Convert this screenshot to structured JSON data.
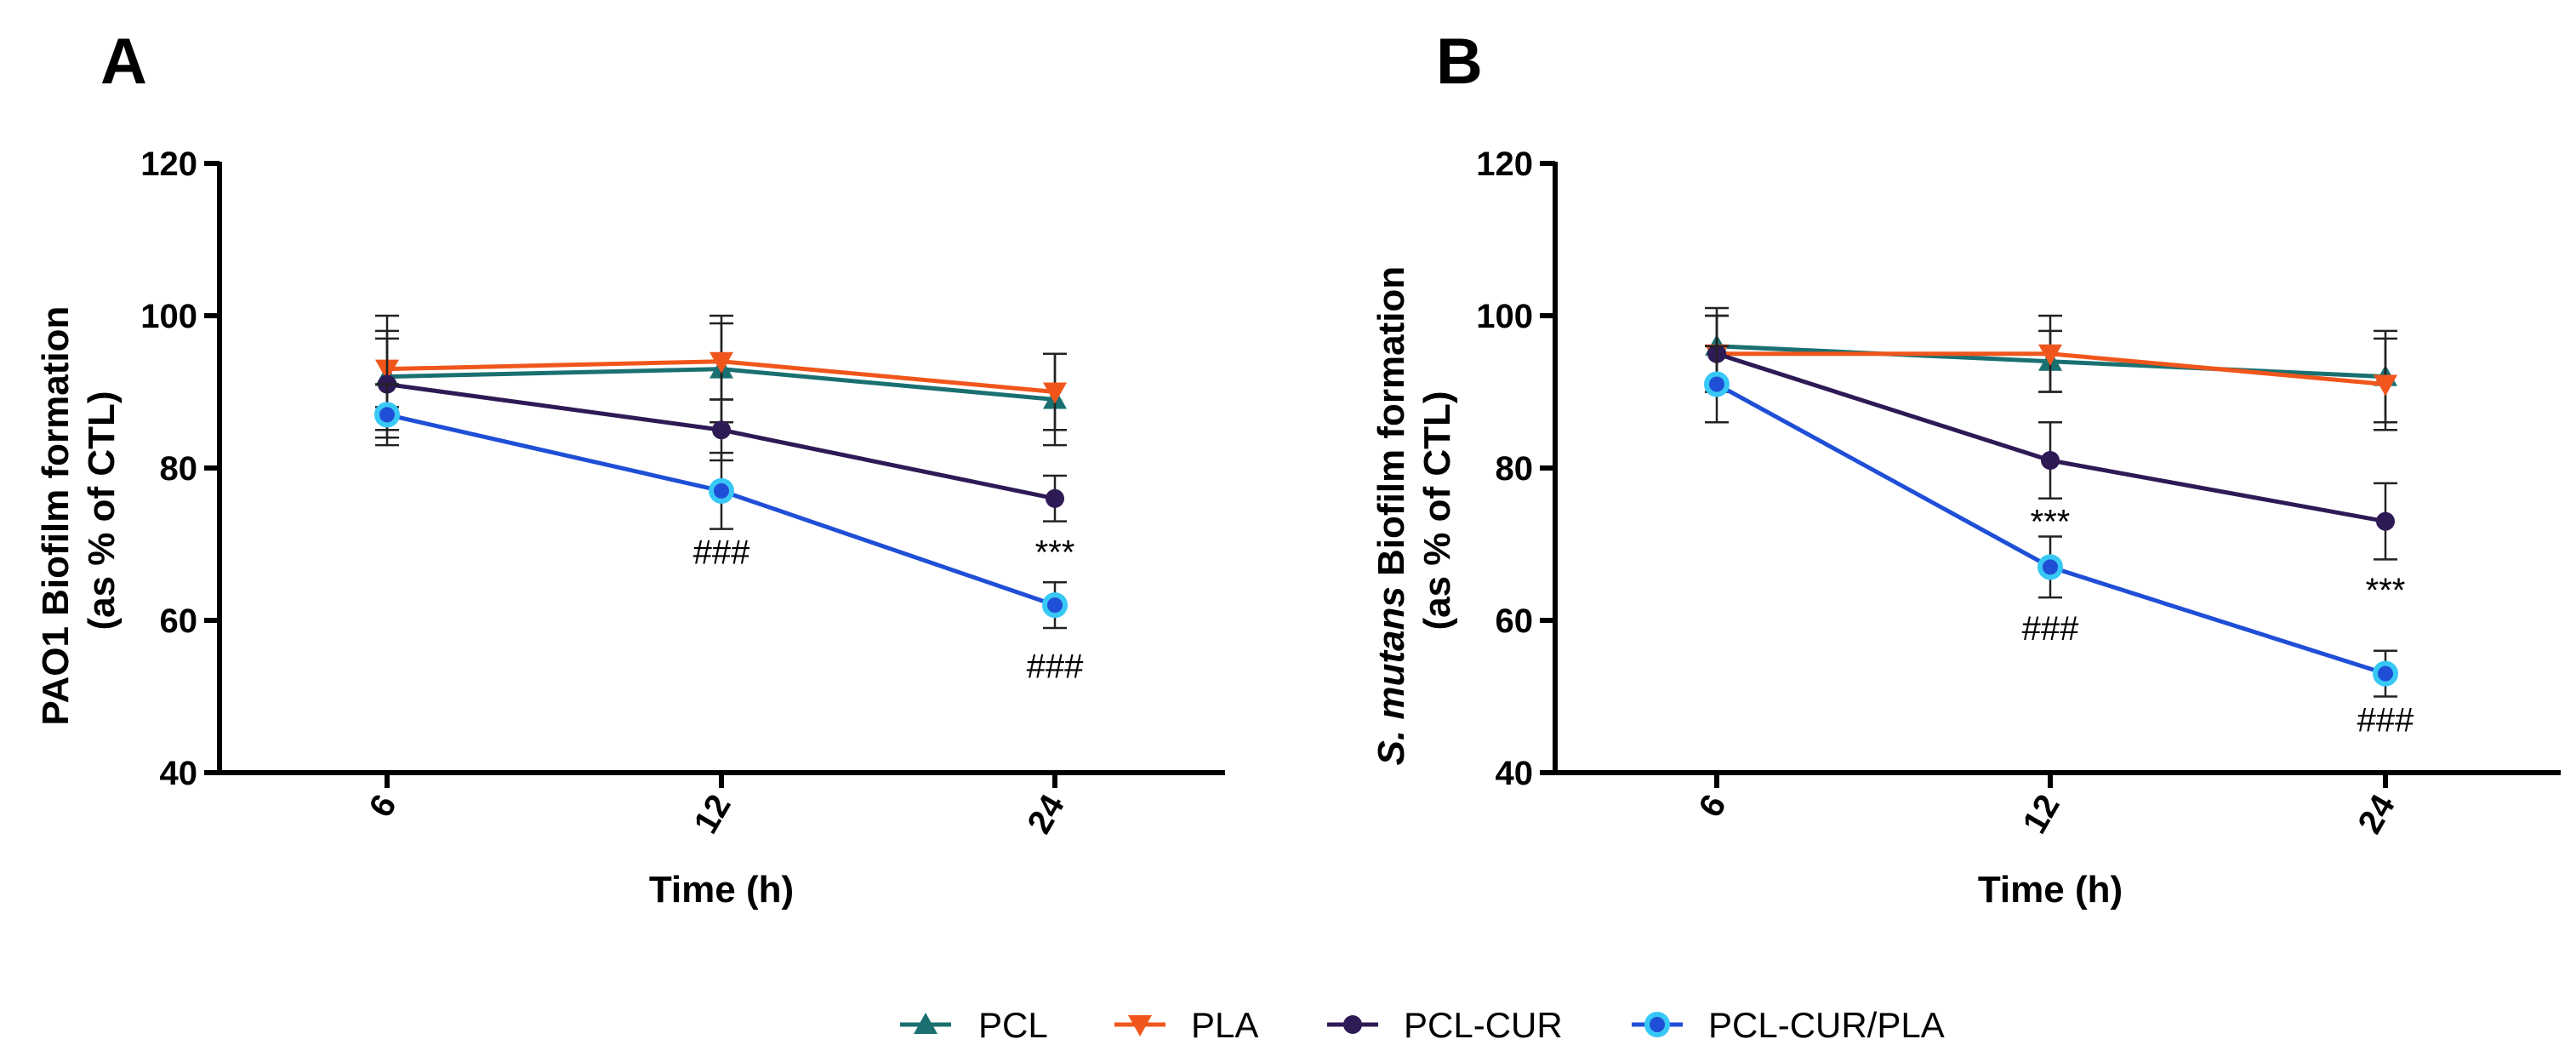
{
  "chart_data": [
    {
      "panel": "A",
      "type": "line",
      "xlabel": "Time (h)",
      "ylabel_lines": [
        "PAO1 Biofilm formation",
        "(as % of CTL)"
      ],
      "categories": [
        "6",
        "12",
        "24"
      ],
      "ylim": [
        40,
        120
      ],
      "yticks": [
        "40",
        "60",
        "80",
        "100",
        "120"
      ],
      "series": [
        {
          "name": "PCL",
          "values": [
            92,
            93,
            89
          ],
          "errors": [
            8,
            7,
            6
          ]
        },
        {
          "name": "PLA",
          "values": [
            93,
            94,
            90
          ],
          "errors": [
            5,
            5,
            5
          ]
        },
        {
          "name": "PCL-CUR",
          "values": [
            91,
            85,
            76
          ],
          "errors": [
            6,
            4,
            3
          ]
        },
        {
          "name": "PCL-CUR/PLA",
          "values": [
            87,
            77,
            62
          ],
          "errors": [
            4,
            5,
            3
          ]
        }
      ],
      "annotations": [
        {
          "text": "###",
          "category": "12",
          "value": 69
        },
        {
          "text": "***",
          "category": "24",
          "value": 69
        },
        {
          "text": "###",
          "category": "24",
          "value": 54
        }
      ]
    },
    {
      "panel": "B",
      "type": "line",
      "xlabel": "Time (h)",
      "ylabel_lines": [
        " Biofilm formation",
        "(as % of CTL)"
      ],
      "ylabel_italic": "S. mutans",
      "categories": [
        "6",
        "12",
        "24"
      ],
      "ylim": [
        40,
        120
      ],
      "yticks": [
        "40",
        "60",
        "80",
        "100",
        "120"
      ],
      "series": [
        {
          "name": "PCL",
          "values": [
            96,
            94,
            92
          ],
          "errors": [
            5,
            4,
            6
          ]
        },
        {
          "name": "PLA",
          "values": [
            95,
            95,
            91
          ],
          "errors": [
            5,
            5,
            6
          ]
        },
        {
          "name": "PCL-CUR",
          "values": [
            95,
            81,
            73
          ],
          "errors": [
            5,
            5,
            5
          ]
        },
        {
          "name": "PCL-CUR/PLA",
          "values": [
            91,
            67,
            53
          ],
          "errors": [
            5,
            4,
            3
          ]
        }
      ],
      "annotations": [
        {
          "text": "***",
          "category": "12",
          "value": 73
        },
        {
          "text": "###",
          "category": "12",
          "value": 59
        },
        {
          "text": "***",
          "category": "24",
          "value": 64
        },
        {
          "text": "###",
          "category": "24",
          "value": 47
        }
      ]
    }
  ],
  "legend": [
    {
      "name": "PCL",
      "color": "#1a7070",
      "marker": "triangle-up"
    },
    {
      "name": "PLA",
      "color": "#f0561c",
      "marker": "triangle-down"
    },
    {
      "name": "PCL-CUR",
      "color": "#2e1a55",
      "marker": "circle"
    },
    {
      "name": "PCL-CUR/PLA",
      "color": "#1f4fd6",
      "marker": "circle-ring",
      "ring_color": "#38c8f5"
    }
  ]
}
